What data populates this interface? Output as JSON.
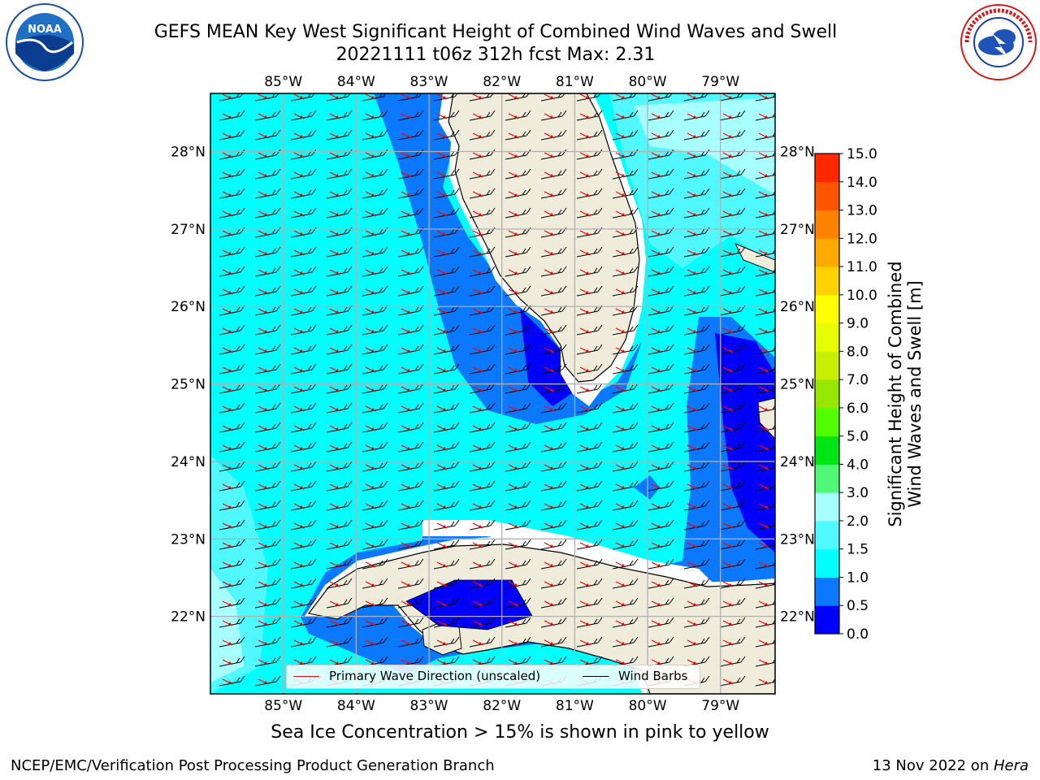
{
  "header": {
    "title_line1": "GEFS MEAN Key West Significant Height of Combined Wind Waves and Swell",
    "title_line2": "20221111 t06z 312h fcst   Max: 2.31"
  },
  "logos": {
    "left": "noaa-logo",
    "right": "nws-logo"
  },
  "map": {
    "lon_ticks": [
      "85°W",
      "84°W",
      "83°W",
      "82°W",
      "81°W",
      "80°W",
      "79°W"
    ],
    "lon_values": [
      -85,
      -84,
      -83,
      -82,
      -81,
      -80,
      -79
    ],
    "lat_ticks": [
      "28°N",
      "27°N",
      "26°N",
      "25°N",
      "24°N",
      "23°N",
      "22°N"
    ],
    "lat_values": [
      28,
      27,
      26,
      25,
      24,
      23,
      22
    ],
    "extent": {
      "lon_min": -86.0,
      "lon_max": -78.25,
      "lat_min": 21.0,
      "lat_max": 28.75
    },
    "land_color": "#efecdc",
    "grid_color": "#b0b0b0"
  },
  "legend": {
    "wave_label": "Primary Wave Direction (unscaled)",
    "barb_label": "Wind Barbs",
    "wave_color": "#ff0000",
    "barb_color": "#000000"
  },
  "colorbar": {
    "label_line1": "Significant Height of Combined",
    "label_line2": "Wind Waves and Swell [m]",
    "ticks": [
      "0.0",
      "0.5",
      "1.0",
      "1.5",
      "2.0",
      "3.0",
      "4.0",
      "5.0",
      "6.0",
      "7.0",
      "8.0",
      "9.0",
      "10.0",
      "11.0",
      "12.0",
      "13.0",
      "14.0",
      "15.0"
    ],
    "colors": [
      "#0000ff",
      "#0a78ff",
      "#00ffff",
      "#50f8ff",
      "#a8ffff",
      "#50f878",
      "#00e614",
      "#50ff00",
      "#96e600",
      "#c8ee00",
      "#e6ff00",
      "#ffff00",
      "#ffd200",
      "#ffaa00",
      "#ff8200",
      "#ff5500",
      "#ff2800"
    ]
  },
  "subnote": "Sea Ice Concentration > 15% is shown in pink to yellow",
  "footer": {
    "left": "NCEP/EMC/Verification Post Processing Product Generation Branch",
    "right_prefix": "13 Nov 2022 on ",
    "right_host": "Hera"
  }
}
